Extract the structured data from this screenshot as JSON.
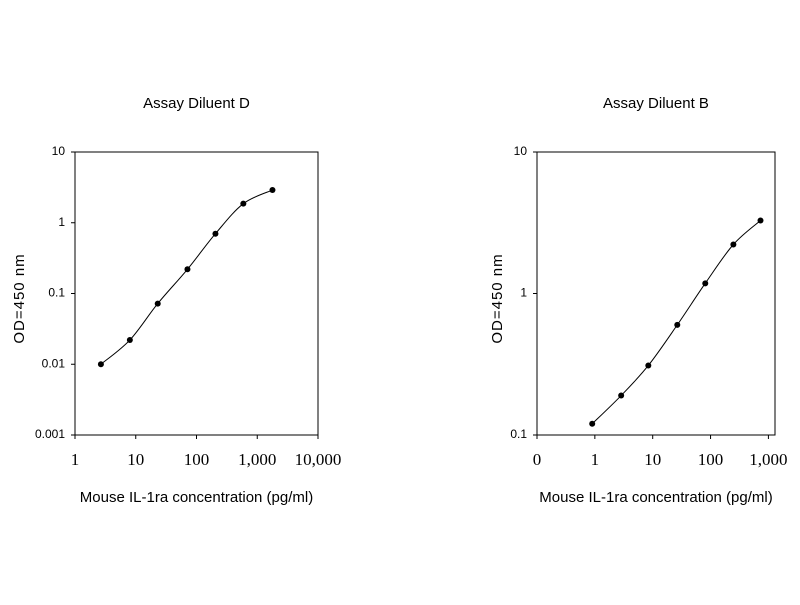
{
  "chart_data": [
    {
      "type": "line",
      "title": "Assay Diluent D",
      "x_label": "Mouse IL-1ra concentration (pg/ml)",
      "y_label": "OD=450 nm",
      "x": [
        2.67,
        8,
        23,
        71,
        205,
        590,
        1780
      ],
      "series": [
        {
          "color": "#000000",
          "values": [
            0.01,
            0.022,
            0.072,
            0.22,
            0.7,
            1.86,
            2.9
          ]
        }
      ],
      "log_x": true,
      "log_y": true,
      "xlim": [
        1,
        10000
      ],
      "ylim": [
        0.001,
        10
      ],
      "xticks": [
        1,
        10,
        100,
        {
          "value": 1000,
          "label": "1,000"
        },
        {
          "value": 10000,
          "label": "10,000"
        }
      ],
      "yticks": [
        0.001,
        0.01,
        0.1,
        1,
        10
      ]
    },
    {
      "type": "line",
      "title": "Assay Diluent B",
      "x_label": "Mouse IL-1ra concentration (pg/ml)",
      "y_label": "OD=450 nm",
      "x": [
        0.9,
        2.85,
        8.4,
        26.6,
        81,
        248,
        730
      ],
      "series": [
        {
          "color": "#000000",
          "values": [
            0.12,
            0.19,
            0.31,
            0.6,
            1.18,
            2.22,
            3.28
          ]
        }
      ],
      "log_x": true,
      "log_y": true,
      "xlim": [
        0.1,
        1300
      ],
      "ylim": [
        0.1,
        10
      ],
      "xticks": [
        {
          "value": 0.1,
          "label": "0"
        },
        1,
        10,
        100,
        {
          "value": 1000,
          "label": "1,000"
        }
      ],
      "yticks": [
        0.1,
        1,
        10
      ]
    }
  ]
}
